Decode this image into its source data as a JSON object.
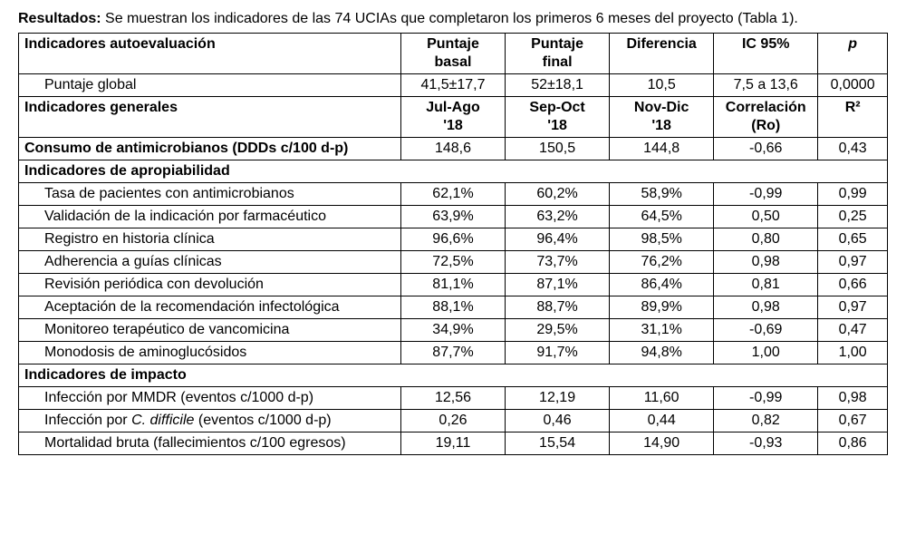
{
  "intro": {
    "label": "Resultados:",
    "text": " Se muestran los indicadores de las 74 UCIAs que completaron los primeros 6 meses del proyecto (Tabla 1)."
  },
  "header1": {
    "c0": "Indicadores autoevaluación",
    "c1a": "Puntaje",
    "c1b": "basal",
    "c2a": "Puntaje",
    "c2b": "final",
    "c3": "Diferencia",
    "c4": "IC 95%",
    "c5": "p"
  },
  "row_global": {
    "label": "Puntaje global",
    "v1": "41,5±17,7",
    "v2": "52±18,1",
    "v3": "10,5",
    "v4": "7,5 a 13,6",
    "v5": "0,0000"
  },
  "header2": {
    "c0": "Indicadores generales",
    "c1a": "Jul-Ago",
    "c1b": "'18",
    "c2a": "Sep-Oct",
    "c2b": "'18",
    "c3a": "Nov-Dic",
    "c3b": "'18",
    "c4a": "Correlación",
    "c4b": "(Ro)",
    "c5": "R²"
  },
  "row_consumo": {
    "label": "Consumo de antimicrobianos (DDDs c/100 d-p)",
    "v1": "148,6",
    "v2": "150,5",
    "v3": "144,8",
    "v4": "-0,66",
    "v5": "0,43"
  },
  "section_aprop": "Indicadores de apropiabilidad",
  "aprop": [
    {
      "label": "Tasa de pacientes con antimicrobianos",
      "v1": "62,1%",
      "v2": "60,2%",
      "v3": "58,9%",
      "v4": "-0,99",
      "v5": "0,99"
    },
    {
      "label": "Validación de la indicación por farmacéutico",
      "v1": "63,9%",
      "v2": "63,2%",
      "v3": "64,5%",
      "v4": "0,50",
      "v5": "0,25"
    },
    {
      "label": "Registro en historia clínica",
      "v1": "96,6%",
      "v2": "96,4%",
      "v3": "98,5%",
      "v4": "0,80",
      "v5": "0,65"
    },
    {
      "label": "Adherencia a guías clínicas",
      "v1": "72,5%",
      "v2": "73,7%",
      "v3": "76,2%",
      "v4": "0,98",
      "v5": "0,97"
    },
    {
      "label": "Revisión periódica con devolución",
      "v1": "81,1%",
      "v2": "87,1%",
      "v3": "86,4%",
      "v4": "0,81",
      "v5": "0,66"
    },
    {
      "label": "Aceptación de la recomendación infectológica",
      "v1": "88,1%",
      "v2": "88,7%",
      "v3": "89,9%",
      "v4": "0,98",
      "v5": "0,97"
    },
    {
      "label": "Monitoreo terapéutico de vancomicina",
      "v1": "34,9%",
      "v2": "29,5%",
      "v3": "31,1%",
      "v4": "-0,69",
      "v5": "0,47"
    },
    {
      "label": "Monodosis de aminoglucósidos",
      "v1": "87,7%",
      "v2": "91,7%",
      "v3": "94,8%",
      "v4": "1,00",
      "v5": "1,00"
    }
  ],
  "section_impacto": "Indicadores de impacto",
  "impacto": [
    {
      "label": "Infección por MMDR (eventos c/1000 d-p)",
      "v1": "12,56",
      "v2": "12,19",
      "v3": "11,60",
      "v4": "-0,99",
      "v5": "0,98"
    },
    {
      "label_html": "Infección por <i>C. difficile</i> (eventos c/1000 d-p)",
      "v1": "0,26",
      "v2": "0,46",
      "v3": "0,44",
      "v4": "0,82",
      "v5": "0,67"
    },
    {
      "label": "Mortalidad bruta (fallecimientos c/100 egresos)",
      "v1": "19,11",
      "v2": "15,54",
      "v3": "14,90",
      "v4": "-0,93",
      "v5": "0,86"
    }
  ]
}
